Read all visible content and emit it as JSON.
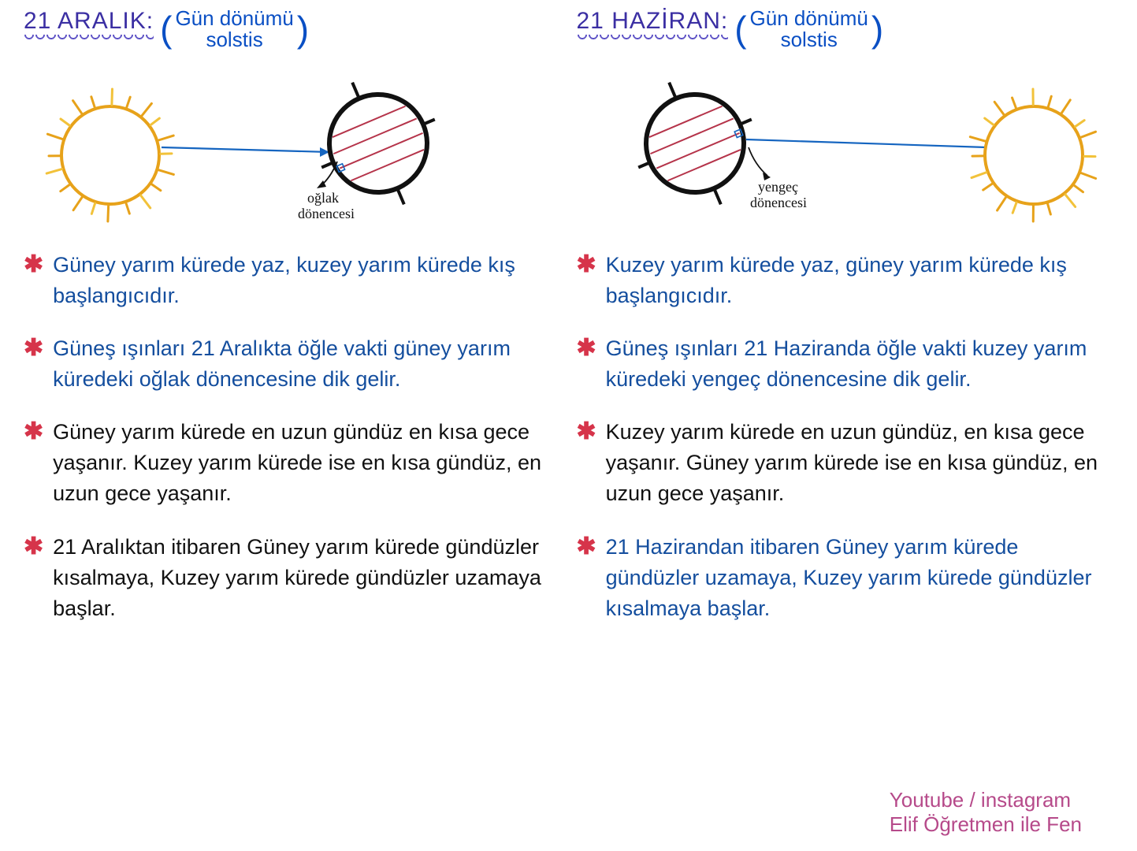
{
  "colors": {
    "title_purple": "#3b2fa3",
    "underline_purple": "#4b3fc0",
    "paren_blue": "#0a4fc4",
    "black": "#111111",
    "pen_blue": "#144e9e",
    "asterisk_red": "#d6344a",
    "sun_orange": "#e7a21a",
    "sun_yellow": "#f2c23a",
    "earth_stroke": "#111111",
    "ray_blue": "#1565c0",
    "earth_line_red": "#b5344a",
    "credit_pink": "#b64a8a"
  },
  "left": {
    "title": "21 ARALIK:",
    "paren_line1": "Gün dönümü",
    "paren_line2": "solstis",
    "diagram_label_line1": "oğlak",
    "diagram_label_line2": "dönencesi",
    "bullets": [
      {
        "asterisk_color": "asterisk_red",
        "text_color": "pen_blue",
        "text": "Güney yarım kürede yaz, kuzey yarım kürede kış başlangıcıdır."
      },
      {
        "asterisk_color": "asterisk_red",
        "text_color": "pen_blue",
        "text": "Güneş ışınları 21 Aralıkta öğle vakti güney yarım küredeki oğlak dönencesine dik gelir."
      },
      {
        "asterisk_color": "asterisk_red",
        "text_color": "black",
        "text": "Güney yarım kürede en uzun gündüz en kısa gece yaşanır. Kuzey yarım kürede ise en kısa gündüz, en uzun gece yaşanır."
      },
      {
        "asterisk_color": "asterisk_red",
        "text_color": "black",
        "text": "21 Aralıktan itibaren Güney yarım kürede gündüzler kısalmaya, Kuzey yarım kürede gündüzler uzamaya başlar."
      }
    ]
  },
  "right": {
    "title": "21 HAZİRAN:",
    "paren_line1": "Gün dönümü",
    "paren_line2": "solstis",
    "diagram_label_line1": "yengeç",
    "diagram_label_line2": "dönencesi",
    "bullets": [
      {
        "asterisk_color": "asterisk_red",
        "text_color": "pen_blue",
        "text": "Kuzey yarım kürede yaz, güney yarım kürede kış başlangıcıdır."
      },
      {
        "asterisk_color": "asterisk_red",
        "text_color": "pen_blue",
        "text": "Güneş ışınları 21 Haziranda öğle vakti kuzey yarım küredeki yengeç dönencesine dik gelir."
      },
      {
        "asterisk_color": "asterisk_red",
        "text_color": "black",
        "text": "Kuzey yarım kürede en uzun gündüz, en kısa gece yaşanır. Güney yarım kürede ise en kısa gündüz, en uzun gece yaşanır."
      },
      {
        "asterisk_color": "asterisk_red",
        "text_color": "pen_blue",
        "text": "21 Hazirandan itibaren Güney yarım kürede gündüzler uzamaya, Kuzey yarım kürede gündüzler kısalmaya başlar."
      }
    ]
  },
  "credit_line1": "Youtube / instagram",
  "credit_line2": "Elif Öğretmen ile Fen",
  "diagram_style": {
    "sun_radius": 62,
    "sun_ray_count": 20,
    "sun_ray_len": 18,
    "sun_stroke_width": 4,
    "earth_radius": 62,
    "earth_stroke_width": 6,
    "axis_len": 22,
    "tropic_stroke_width": 2,
    "ray_stroke_width": 2.2,
    "label_font_size": 18
  }
}
